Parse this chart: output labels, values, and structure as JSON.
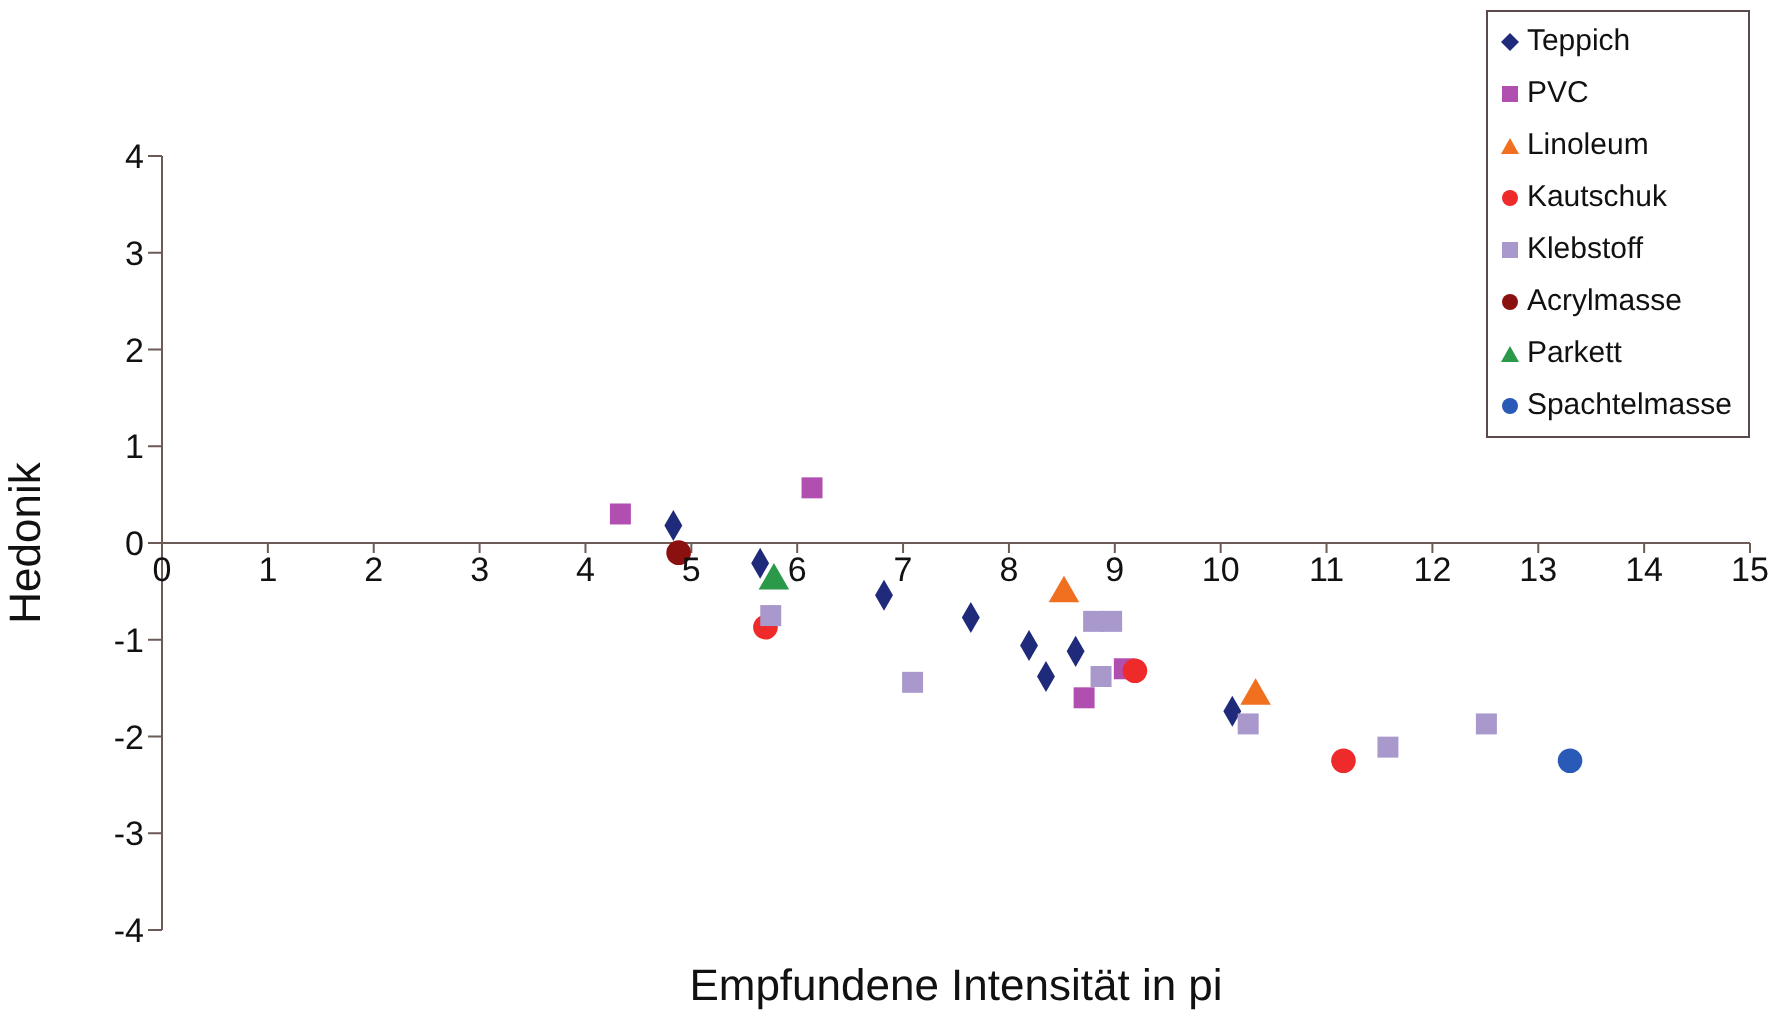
{
  "chart_data": {
    "type": "scatter",
    "xlabel": "Empfundene Intensität in pi",
    "ylabel": "Hedonik",
    "xlim": [
      0,
      15
    ],
    "xticks": [
      0,
      1,
      2,
      3,
      4,
      5,
      6,
      7,
      8,
      9,
      10,
      11,
      12,
      13,
      14,
      15
    ],
    "ylim": [
      -4,
      4
    ],
    "yticks": [
      -4,
      -3,
      -2,
      -1,
      0,
      1,
      2,
      3,
      4
    ],
    "grid": false,
    "legend": "top right",
    "series": [
      {
        "name": "Teppich",
        "color": "#1f2a7a",
        "marker": "diamond",
        "x": [
          4.83,
          5.65,
          6.82,
          7.64,
          8.19,
          8.35,
          8.63,
          10.11
        ],
        "values": [
          0.18,
          -0.21,
          -0.54,
          -0.77,
          -1.06,
          -1.38,
          -1.12,
          -1.74
        ]
      },
      {
        "name": "PVC",
        "color": "#b04fb0",
        "marker": "square",
        "x": [
          4.33,
          6.14,
          8.71,
          9.09
        ],
        "values": [
          0.3,
          0.57,
          -1.6,
          -1.3
        ]
      },
      {
        "name": "Linoleum",
        "color": "#f07020",
        "marker": "triangle",
        "x": [
          8.52,
          10.33
        ],
        "values": [
          -0.52,
          -1.58
        ]
      },
      {
        "name": "Kautschuk",
        "color": "#ee2a2a",
        "marker": "circle",
        "x": [
          5.7,
          9.19,
          11.16
        ],
        "values": [
          -0.87,
          -1.32,
          -2.25
        ]
      },
      {
        "name": "Klebstoff",
        "color": "#a898cc",
        "marker": "square",
        "x": [
          5.75,
          7.09,
          8.8,
          8.97,
          8.87,
          10.26,
          11.58,
          12.51
        ],
        "values": [
          -0.75,
          -1.44,
          -0.81,
          -0.81,
          -1.38,
          -1.87,
          -2.11,
          -1.87
        ]
      },
      {
        "name": "Acrylmasse",
        "color": "#8b1010",
        "marker": "circle",
        "x": [
          4.88
        ],
        "values": [
          -0.1
        ]
      },
      {
        "name": "Parkett",
        "color": "#2a9a4a",
        "marker": "triangle",
        "x": [
          5.78
        ],
        "values": [
          -0.39
        ]
      },
      {
        "name": "Spachtelmasse",
        "color": "#2a5ab8",
        "marker": "circle",
        "x": [
          13.3
        ],
        "values": [
          -2.25
        ]
      }
    ]
  }
}
